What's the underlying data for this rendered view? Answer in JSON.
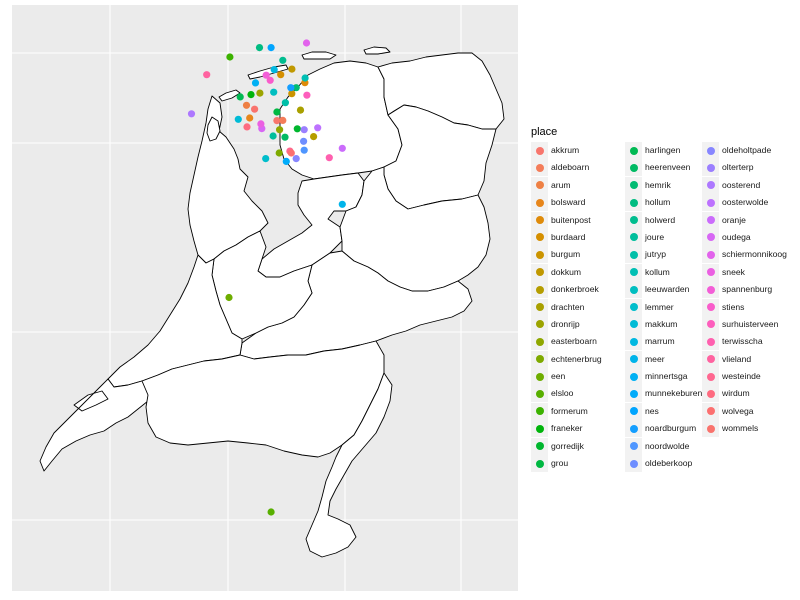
{
  "legend": {
    "title": "place",
    "items": [
      {
        "label": "akkrum",
        "color": "#F8766D"
      },
      {
        "label": "aldeboarn",
        "color": "#F47D5A"
      },
      {
        "label": "arum",
        "color": "#EE8044"
      },
      {
        "label": "bolsward",
        "color": "#E7861B"
      },
      {
        "label": "buitenpost",
        "color": "#DF8B0A"
      },
      {
        "label": "burdaard",
        "color": "#D58F00"
      },
      {
        "label": "burgum",
        "color": "#CB9400"
      },
      {
        "label": "dokkum",
        "color": "#C09800"
      },
      {
        "label": "donkerbroek",
        "color": "#B59D00"
      },
      {
        "label": "drachten",
        "color": "#A9A000"
      },
      {
        "label": "dronrijp",
        "color": "#9CA400"
      },
      {
        "label": "easterboarn",
        "color": "#8FA700"
      },
      {
        "label": "echtenerbrug",
        "color": "#7FAA00"
      },
      {
        "label": "een",
        "color": "#6EAD00"
      },
      {
        "label": "elsloo",
        "color": "#58AF00"
      },
      {
        "label": "formerum",
        "color": "#3CB200"
      },
      {
        "label": "franeker",
        "color": "#00B40B"
      },
      {
        "label": "gorredijk",
        "color": "#00B62E"
      },
      {
        "label": "grou",
        "color": "#00B842"
      },
      {
        "label": "harlingen",
        "color": "#00B953"
      },
      {
        "label": "heerenveen",
        "color": "#00BA63"
      },
      {
        "label": "hemrik",
        "color": "#00BB72"
      },
      {
        "label": "hollum",
        "color": "#00BC81"
      },
      {
        "label": "holwerd",
        "color": "#00BD8F"
      },
      {
        "label": "joure",
        "color": "#00BE9C"
      },
      {
        "label": "jutryp",
        "color": "#00BFA8"
      },
      {
        "label": "kollum",
        "color": "#00BFB4"
      },
      {
        "label": "leeuwarden",
        "color": "#00BEC0"
      },
      {
        "label": "lemmer",
        "color": "#00BDCB"
      },
      {
        "label": "makkum",
        "color": "#00BBD6"
      },
      {
        "label": "marrum",
        "color": "#00B8E1"
      },
      {
        "label": "meer",
        "color": "#00B4EA"
      },
      {
        "label": "minnertsga",
        "color": "#00B0F3"
      },
      {
        "label": "munnekeburen",
        "color": "#00ABFA"
      },
      {
        "label": "nes",
        "color": "#00A5FF"
      },
      {
        "label": "noardburgum",
        "color": "#149EFF"
      },
      {
        "label": "noordwolde",
        "color": "#4F96FF"
      },
      {
        "label": "oldeberkoop",
        "color": "#6E8EFF"
      },
      {
        "label": "oldeholtpade",
        "color": "#8786FF"
      },
      {
        "label": "olterterp",
        "color": "#9B7FFF"
      },
      {
        "label": "oosterend",
        "color": "#AD78FF"
      },
      {
        "label": "oosterwolde",
        "color": "#BD72FF"
      },
      {
        "label": "oranje",
        "color": "#CB6CFC"
      },
      {
        "label": "oudega",
        "color": "#D767F4"
      },
      {
        "label": "schiermonnikoog",
        "color": "#E263EC"
      },
      {
        "label": "sneek",
        "color": "#EB60E2"
      },
      {
        "label": "spannenburg",
        "color": "#F35ED7"
      },
      {
        "label": "stiens",
        "color": "#F95DCB"
      },
      {
        "label": "surhuisterveen",
        "color": "#FD5EBD"
      },
      {
        "label": "terwisscha",
        "color": "#FF60AF"
      },
      {
        "label": "vlieland",
        "color": "#FF63A0"
      },
      {
        "label": "westeinde",
        "color": "#FF6790"
      },
      {
        "label": "wirdum",
        "color": "#FE6B80"
      },
      {
        "label": "wolvega",
        "color": "#FC7070"
      },
      {
        "label": "wommels",
        "color": "#F9736D"
      }
    ]
  },
  "map": {
    "panel_background": "#EBEBEB",
    "grid_color": "#FFFFFF",
    "land_fill": "#FFFFFF",
    "border_color": "#000000",
    "points": [
      {
        "place": "akkrum",
        "lon": 5.835,
        "lat": 53.049
      },
      {
        "place": "aldeboarn",
        "lon": 5.9,
        "lat": 53.05
      },
      {
        "place": "arum",
        "lon": 5.495,
        "lat": 53.131
      },
      {
        "place": "bolsward",
        "lon": 5.531,
        "lat": 53.063
      },
      {
        "place": "buitenpost",
        "lon": 6.147,
        "lat": 53.252
      },
      {
        "place": "burdaard",
        "lon": 5.877,
        "lat": 53.295
      },
      {
        "place": "burgum",
        "lon": 6.001,
        "lat": 53.193
      },
      {
        "place": "dokkum",
        "lon": 6.002,
        "lat": 53.325
      },
      {
        "place": "donkerbroek",
        "lon": 6.245,
        "lat": 52.963
      },
      {
        "place": "drachten",
        "lon": 6.098,
        "lat": 53.105
      },
      {
        "place": "dronrijp",
        "lon": 5.645,
        "lat": 53.196
      },
      {
        "place": "easterboarn",
        "lon": 5.865,
        "lat": 53.0
      },
      {
        "place": "echtenerbrug",
        "lon": 5.86,
        "lat": 52.875
      },
      {
        "place": "een",
        "lon": 5.3,
        "lat": 52.1
      },
      {
        "place": "elsloo",
        "lon": 5.77,
        "lat": 50.95
      },
      {
        "place": "formerum",
        "lon": 5.31,
        "lat": 53.39
      },
      {
        "place": "franeker",
        "lon": 5.545,
        "lat": 53.188
      },
      {
        "place": "gorredijk",
        "lon": 6.063,
        "lat": 53.005
      },
      {
        "place": "grou",
        "lon": 5.835,
        "lat": 53.095
      },
      {
        "place": "harlingen",
        "lon": 5.425,
        "lat": 53.176
      },
      {
        "place": "heerenveen",
        "lon": 5.925,
        "lat": 52.96
      },
      {
        "place": "hemrik",
        "lon": 6.05,
        "lat": 53.225
      },
      {
        "place": "hollum",
        "lon": 5.64,
        "lat": 53.44
      },
      {
        "place": "holwerd",
        "lon": 5.9,
        "lat": 53.372
      },
      {
        "place": "joure",
        "lon": 5.792,
        "lat": 52.966
      },
      {
        "place": "jutryp",
        "lon": 5.93,
        "lat": 53.145
      },
      {
        "place": "kollum",
        "lon": 6.15,
        "lat": 53.277
      },
      {
        "place": "leeuwarden",
        "lon": 5.799,
        "lat": 53.201
      },
      {
        "place": "lemmer",
        "lon": 5.71,
        "lat": 52.845
      },
      {
        "place": "makkum",
        "lon": 5.403,
        "lat": 53.056
      },
      {
        "place": "marrum",
        "lon": 5.804,
        "lat": 53.322
      },
      {
        "place": "meer",
        "lon": 6.565,
        "lat": 52.6
      },
      {
        "place": "minnertsga",
        "lon": 5.596,
        "lat": 53.251
      },
      {
        "place": "munnekeburen",
        "lon": 5.94,
        "lat": 52.83
      },
      {
        "place": "nes",
        "lon": 5.77,
        "lat": 53.44
      },
      {
        "place": "noardburgum",
        "lon": 5.99,
        "lat": 53.225
      },
      {
        "place": "noordwolde",
        "lon": 6.14,
        "lat": 52.89
      },
      {
        "place": "oldeberkoop",
        "lon": 6.133,
        "lat": 52.938
      },
      {
        "place": "oldeholtpade",
        "lon": 6.05,
        "lat": 52.845
      },
      {
        "place": "olterterp",
        "lon": 6.14,
        "lat": 53.0
      },
      {
        "place": "oosterend",
        "lon": 4.88,
        "lat": 53.085
      },
      {
        "place": "oosterwolde",
        "lon": 6.29,
        "lat": 53.01
      },
      {
        "place": "oranje",
        "lon": 6.565,
        "lat": 52.9
      },
      {
        "place": "oudega",
        "lon": 5.666,
        "lat": 53.006
      },
      {
        "place": "schiermonnikoog",
        "lon": 6.165,
        "lat": 53.465
      },
      {
        "place": "sneek",
        "lon": 5.656,
        "lat": 53.031
      },
      {
        "place": "spannenburg",
        "lon": 5.715,
        "lat": 53.292
      },
      {
        "place": "stiens",
        "lon": 5.76,
        "lat": 53.265
      },
      {
        "place": "surhuisterveen",
        "lon": 6.17,
        "lat": 53.185
      },
      {
        "place": "terwisscha",
        "lon": 6.42,
        "lat": 52.85
      },
      {
        "place": "vlieland",
        "lon": 5.05,
        "lat": 53.295
      },
      {
        "place": "westeinde",
        "lon": 5.98,
        "lat": 52.885
      },
      {
        "place": "wirdum",
        "lon": 5.5,
        "lat": 53.015
      },
      {
        "place": "wolvega",
        "lon": 5.995,
        "lat": 52.875
      },
      {
        "place": "wommels",
        "lon": 5.585,
        "lat": 53.11
      }
    ]
  }
}
